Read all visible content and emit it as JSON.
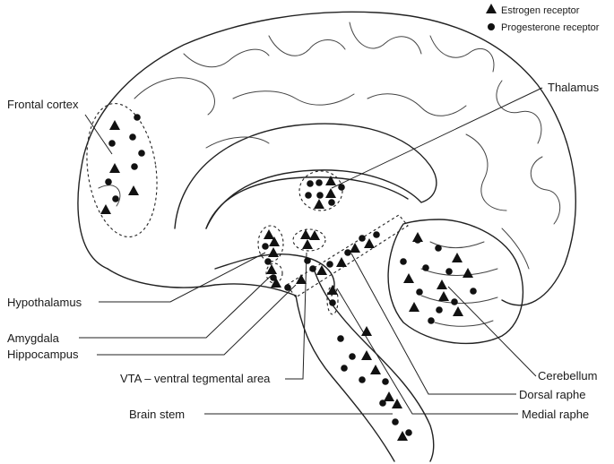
{
  "legend": {
    "estrogen": "Estrogen receptor",
    "progesterone": "Progesterone receptor"
  },
  "labels": {
    "frontal_cortex": "Frontal cortex",
    "thalamus": "Thalamus",
    "hypothalamus": "Hypothalamus",
    "amygdala": "Amygdala",
    "hippocampus": "Hippocampus",
    "vta": "VTA – ventral tegmental area",
    "brain_stem": "Brain stem",
    "cerebellum": "Cerebellum",
    "dorsal_raphe": "Dorsal raphe",
    "medial_raphe": "Medial raphe"
  },
  "colors": {
    "ink": "#111111"
  }
}
